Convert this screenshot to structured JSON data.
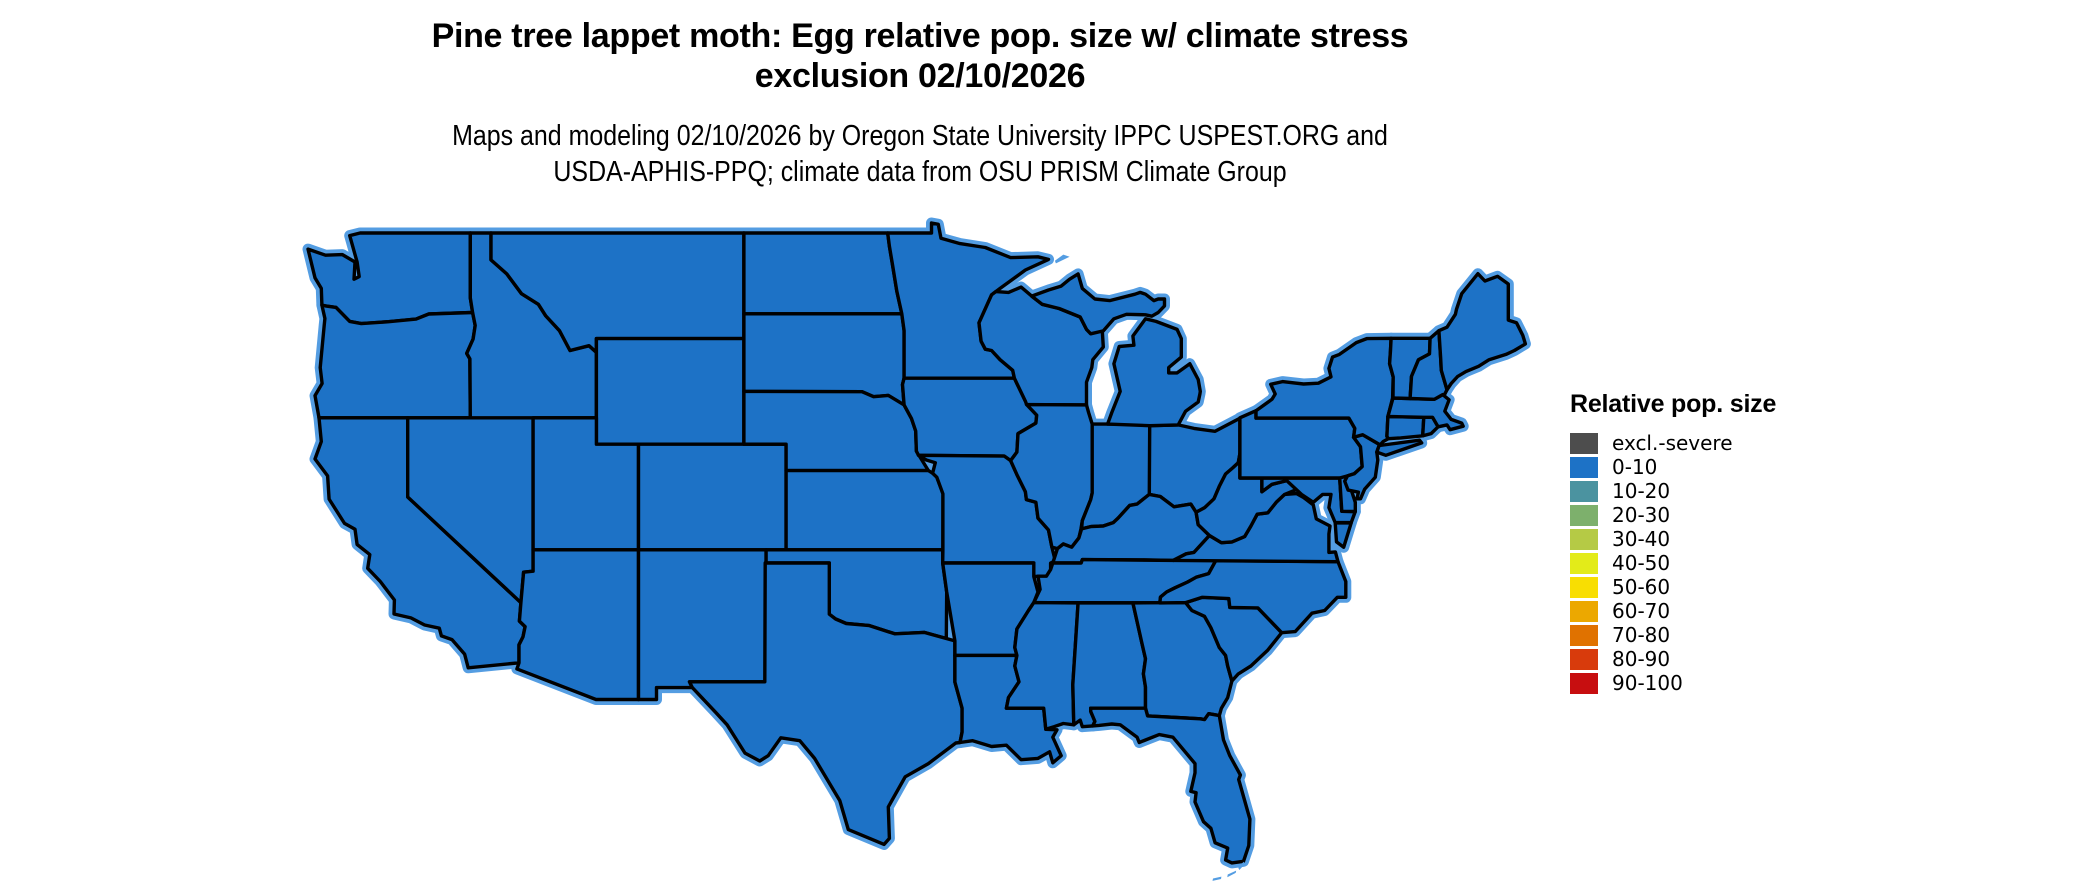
{
  "header": {
    "title_line1": "Pine tree lappet moth: Egg relative pop. size w/ climate stress",
    "title_line2": "exclusion 02/10/2026",
    "subtitle_line1": "Maps and modeling 02/10/2026 by Oregon State University IPPC USPEST.ORG and",
    "subtitle_line2": "USDA-APHIS-PPQ; climate data from OSU PRISM Climate Group"
  },
  "legend": {
    "title": "Relative pop. size",
    "items": [
      {
        "label": "excl.-severe",
        "color": "#4d4d4d"
      },
      {
        "label": "0-10",
        "color": "#1d72c6"
      },
      {
        "label": "10-20",
        "color": "#4b93a0"
      },
      {
        "label": "20-30",
        "color": "#7db06c"
      },
      {
        "label": "30-40",
        "color": "#b5ca45"
      },
      {
        "label": "40-50",
        "color": "#e3eb19"
      },
      {
        "label": "50-60",
        "color": "#f8de02"
      },
      {
        "label": "60-70",
        "color": "#eca800"
      },
      {
        "label": "70-80",
        "color": "#e07200"
      },
      {
        "label": "80-90",
        "color": "#d83b0c"
      },
      {
        "label": "90-100",
        "color": "#c70e10"
      }
    ]
  },
  "map": {
    "type": "choropleth",
    "region": "conterminous United States",
    "border_color": "#000000",
    "coast_halo_color": "#549de2",
    "fill_category_all_states": "0-10",
    "states": [
      {
        "id": "WA",
        "name": "Washington",
        "category": "0-10"
      },
      {
        "id": "OR",
        "name": "Oregon",
        "category": "0-10"
      },
      {
        "id": "CA",
        "name": "California",
        "category": "0-10"
      },
      {
        "id": "NV",
        "name": "Nevada",
        "category": "0-10"
      },
      {
        "id": "ID",
        "name": "Idaho",
        "category": "0-10"
      },
      {
        "id": "MT",
        "name": "Montana",
        "category": "0-10"
      },
      {
        "id": "WY",
        "name": "Wyoming",
        "category": "0-10"
      },
      {
        "id": "UT",
        "name": "Utah",
        "category": "0-10"
      },
      {
        "id": "CO",
        "name": "Colorado",
        "category": "0-10"
      },
      {
        "id": "AZ",
        "name": "Arizona",
        "category": "0-10"
      },
      {
        "id": "NM",
        "name": "New Mexico",
        "category": "0-10"
      },
      {
        "id": "ND",
        "name": "North Dakota",
        "category": "0-10"
      },
      {
        "id": "SD",
        "name": "South Dakota",
        "category": "0-10"
      },
      {
        "id": "NE",
        "name": "Nebraska",
        "category": "0-10"
      },
      {
        "id": "KS",
        "name": "Kansas",
        "category": "0-10"
      },
      {
        "id": "OK",
        "name": "Oklahoma",
        "category": "0-10"
      },
      {
        "id": "TX",
        "name": "Texas",
        "category": "0-10"
      },
      {
        "id": "MN",
        "name": "Minnesota",
        "category": "0-10"
      },
      {
        "id": "IA",
        "name": "Iowa",
        "category": "0-10"
      },
      {
        "id": "MO",
        "name": "Missouri",
        "category": "0-10"
      },
      {
        "id": "AR",
        "name": "Arkansas",
        "category": "0-10"
      },
      {
        "id": "LA",
        "name": "Louisiana",
        "category": "0-10"
      },
      {
        "id": "WI",
        "name": "Wisconsin",
        "category": "0-10"
      },
      {
        "id": "IL",
        "name": "Illinois",
        "category": "0-10"
      },
      {
        "id": "IN",
        "name": "Indiana",
        "category": "0-10"
      },
      {
        "id": "OH",
        "name": "Ohio",
        "category": "0-10"
      },
      {
        "id": "MI",
        "name": "Michigan",
        "category": "0-10"
      },
      {
        "id": "KY",
        "name": "Kentucky",
        "category": "0-10"
      },
      {
        "id": "TN",
        "name": "Tennessee",
        "category": "0-10"
      },
      {
        "id": "MS",
        "name": "Mississippi",
        "category": "0-10"
      },
      {
        "id": "AL",
        "name": "Alabama",
        "category": "0-10"
      },
      {
        "id": "GA",
        "name": "Georgia",
        "category": "0-10"
      },
      {
        "id": "FL",
        "name": "Florida",
        "category": "0-10"
      },
      {
        "id": "SC",
        "name": "South Carolina",
        "category": "0-10"
      },
      {
        "id": "NC",
        "name": "North Carolina",
        "category": "0-10"
      },
      {
        "id": "VA",
        "name": "Virginia",
        "category": "0-10"
      },
      {
        "id": "WV",
        "name": "West Virginia",
        "category": "0-10"
      },
      {
        "id": "MD",
        "name": "Maryland",
        "category": "0-10"
      },
      {
        "id": "DE",
        "name": "Delaware",
        "category": "0-10"
      },
      {
        "id": "PA",
        "name": "Pennsylvania",
        "category": "0-10"
      },
      {
        "id": "NJ",
        "name": "New Jersey",
        "category": "0-10"
      },
      {
        "id": "NY",
        "name": "New York",
        "category": "0-10"
      },
      {
        "id": "CT",
        "name": "Connecticut",
        "category": "0-10"
      },
      {
        "id": "RI",
        "name": "Rhode Island",
        "category": "0-10"
      },
      {
        "id": "MA",
        "name": "Massachusetts",
        "category": "0-10"
      },
      {
        "id": "VT",
        "name": "Vermont",
        "category": "0-10"
      },
      {
        "id": "NH",
        "name": "New Hampshire",
        "category": "0-10"
      },
      {
        "id": "ME",
        "name": "Maine",
        "category": "0-10"
      }
    ]
  }
}
